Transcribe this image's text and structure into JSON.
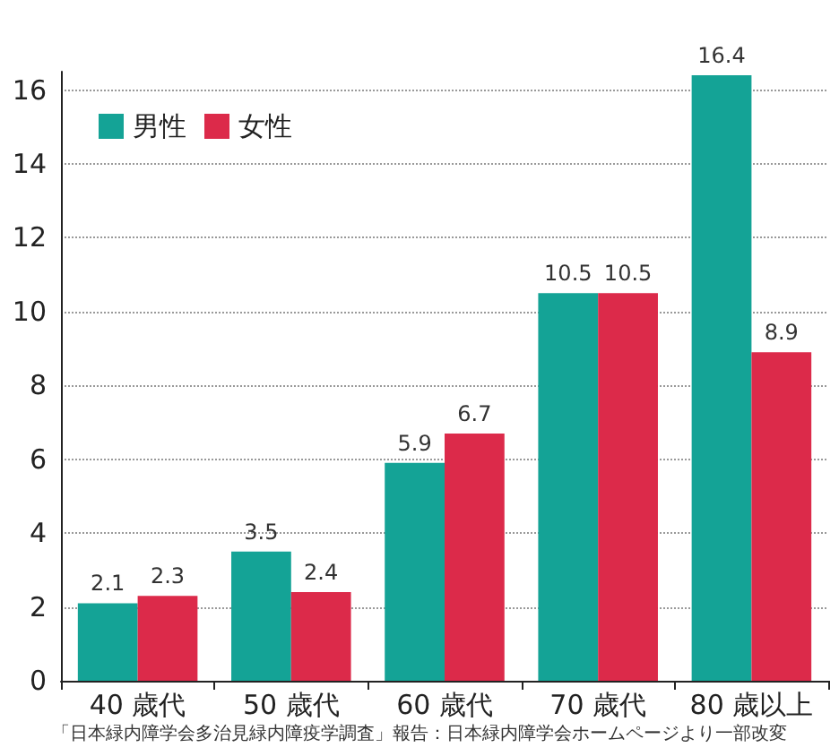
{
  "chart_data": {
    "type": "bar",
    "categories": [
      "40 歳代",
      "50 歳代",
      "60 歳代",
      "70 歳代",
      "80 歳以上"
    ],
    "series": [
      {
        "name": "男性",
        "color": "#14a396",
        "values": [
          2.1,
          3.5,
          5.9,
          10.5,
          16.4
        ]
      },
      {
        "name": "女性",
        "color": "#dc2a4a",
        "values": [
          2.3,
          2.4,
          6.7,
          10.5,
          8.9
        ]
      }
    ],
    "ylim": [
      0,
      16.5
    ],
    "yticks": [
      0,
      2,
      4,
      6,
      8,
      10,
      12,
      14,
      16
    ],
    "grid": "y",
    "legend": "top left",
    "data_labels": true,
    "annotations": [
      "「日本緑内障学会多治見緑内障疫学調査」報告：日本緑内障学会ホームページより一部改変"
    ]
  }
}
